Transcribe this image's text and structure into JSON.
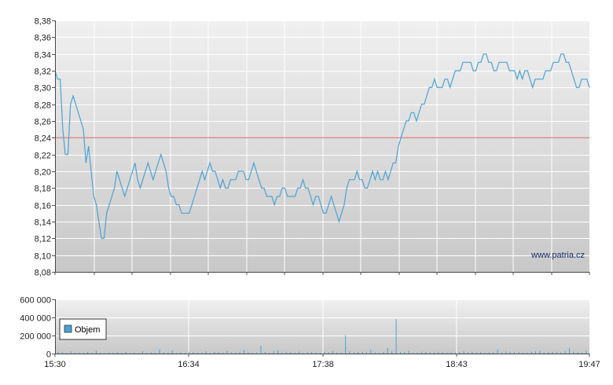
{
  "chart_data": [
    {
      "type": "line",
      "title": "",
      "xlabel": "",
      "ylabel": "",
      "ylim": [
        8.08,
        8.38
      ],
      "y_ticks": [
        "8,38",
        "8,36",
        "8,34",
        "8,32",
        "8,30",
        "8,28",
        "8,26",
        "8,24",
        "8,22",
        "8,20",
        "8,18",
        "8,16",
        "8,14",
        "8,12",
        "8,10",
        "8,08"
      ],
      "reference_line": {
        "value": 8.24,
        "color": "#e07070"
      },
      "line_color": "#4aa3d4",
      "grid": true,
      "watermark": "www.patria.cz",
      "x_time_start": "15:30",
      "x_time_end": "19:47",
      "series": [
        {
          "values": [
            8.32,
            8.31,
            8.31,
            8.25,
            8.22,
            8.22,
            8.28,
            8.29,
            8.28,
            8.27,
            8.26,
            8.25,
            8.21,
            8.23,
            8.2,
            8.17,
            8.16,
            8.14,
            8.12,
            8.12,
            8.15,
            8.16,
            8.17,
            8.18,
            8.2,
            8.19,
            8.18,
            8.17,
            8.18,
            8.19,
            8.2,
            8.21,
            8.19,
            8.18,
            8.19,
            8.2,
            8.21,
            8.2,
            8.19,
            8.2,
            8.21,
            8.22,
            8.21,
            8.2,
            8.18,
            8.17,
            8.17,
            8.16,
            8.16,
            8.15,
            8.15,
            8.15,
            8.15,
            8.16,
            8.17,
            8.18,
            8.19,
            8.2,
            8.19,
            8.2,
            8.21,
            8.2,
            8.2,
            8.19,
            8.18,
            8.19,
            8.18,
            8.18,
            8.19,
            8.19,
            8.19,
            8.2,
            8.2,
            8.2,
            8.19,
            8.19,
            8.2,
            8.21,
            8.2,
            8.19,
            8.18,
            8.18,
            8.17,
            8.17,
            8.17,
            8.16,
            8.17,
            8.17,
            8.18,
            8.18,
            8.17,
            8.17,
            8.17,
            8.17,
            8.18,
            8.18,
            8.19,
            8.18,
            8.18,
            8.17,
            8.16,
            8.17,
            8.17,
            8.16,
            8.15,
            8.15,
            8.16,
            8.17,
            8.16,
            8.15,
            8.14,
            8.15,
            8.16,
            8.18,
            8.19,
            8.19,
            8.19,
            8.2,
            8.19,
            8.19,
            8.18,
            8.18,
            8.19,
            8.2,
            8.19,
            8.2,
            8.19,
            8.19,
            8.2,
            8.19,
            8.2,
            8.21,
            8.21,
            8.23,
            8.24,
            8.25,
            8.26,
            8.26,
            8.27,
            8.27,
            8.26,
            8.27,
            8.28,
            8.28,
            8.29,
            8.3,
            8.3,
            8.31,
            8.3,
            8.3,
            8.3,
            8.31,
            8.31,
            8.3,
            8.31,
            8.32,
            8.32,
            8.32,
            8.33,
            8.33,
            8.33,
            8.33,
            8.32,
            8.32,
            8.33,
            8.33,
            8.34,
            8.34,
            8.33,
            8.33,
            8.32,
            8.32,
            8.33,
            8.33,
            8.33,
            8.33,
            8.32,
            8.32,
            8.32,
            8.31,
            8.32,
            8.31,
            8.32,
            8.32,
            8.31,
            8.3,
            8.31,
            8.31,
            8.31,
            8.31,
            8.32,
            8.32,
            8.32,
            8.33,
            8.33,
            8.33,
            8.34,
            8.34,
            8.33,
            8.33,
            8.32,
            8.31,
            8.3,
            8.3,
            8.31,
            8.31,
            8.31,
            8.3
          ]
        }
      ]
    },
    {
      "type": "bar",
      "title": "",
      "ylim": [
        0,
        600000
      ],
      "y_ticks": [
        "600 000",
        "400 000",
        "200 000",
        "0"
      ],
      "x_ticks": [
        "15:30",
        "16:34",
        "17:38",
        "18:43",
        "19:47"
      ],
      "legend": {
        "label": "Objem",
        "position": "top-left",
        "color": "#4aa3d4"
      },
      "bar_color": "#4aa3d4",
      "grid": true,
      "series": [
        {
          "name": "Objem",
          "values": [
            20000,
            15000,
            8000,
            25000,
            10000,
            12000,
            8000,
            18000,
            6000,
            30000,
            10000,
            5000,
            12000,
            8000,
            15000,
            9000,
            20000,
            7000,
            12000,
            5000,
            25000,
            10000,
            15000,
            8000,
            45000,
            12000,
            10000,
            35000,
            8000,
            14000,
            6000,
            20000,
            15000,
            10000,
            12000,
            25000,
            9000,
            18000,
            14000,
            8000,
            30000,
            12000,
            10000,
            20000,
            40000,
            15000,
            8000,
            12000,
            90000,
            18000,
            10000,
            25000,
            35000,
            12000,
            20000,
            15000,
            10000,
            22000,
            8000,
            14000,
            18000,
            11000,
            9000,
            20000,
            15000,
            30000,
            12000,
            10000,
            200000,
            25000,
            12000,
            18000,
            20000,
            15000,
            40000,
            12000,
            10000,
            18000,
            60000,
            25000,
            380000,
            20000,
            15000,
            30000,
            12000,
            10000,
            22000,
            18000,
            15000,
            12000,
            20000,
            14000,
            10000,
            16000,
            12000,
            18000,
            25000,
            15000,
            20000,
            12000,
            14000,
            10000,
            12000,
            15000,
            45000,
            12000,
            25000,
            20000,
            15000,
            18000,
            12000,
            10000,
            20000,
            25000,
            30000,
            12000,
            15000,
            20000,
            18000,
            12000,
            25000,
            60000,
            20000,
            15000,
            10000,
            30000
          ]
        }
      ]
    }
  ]
}
